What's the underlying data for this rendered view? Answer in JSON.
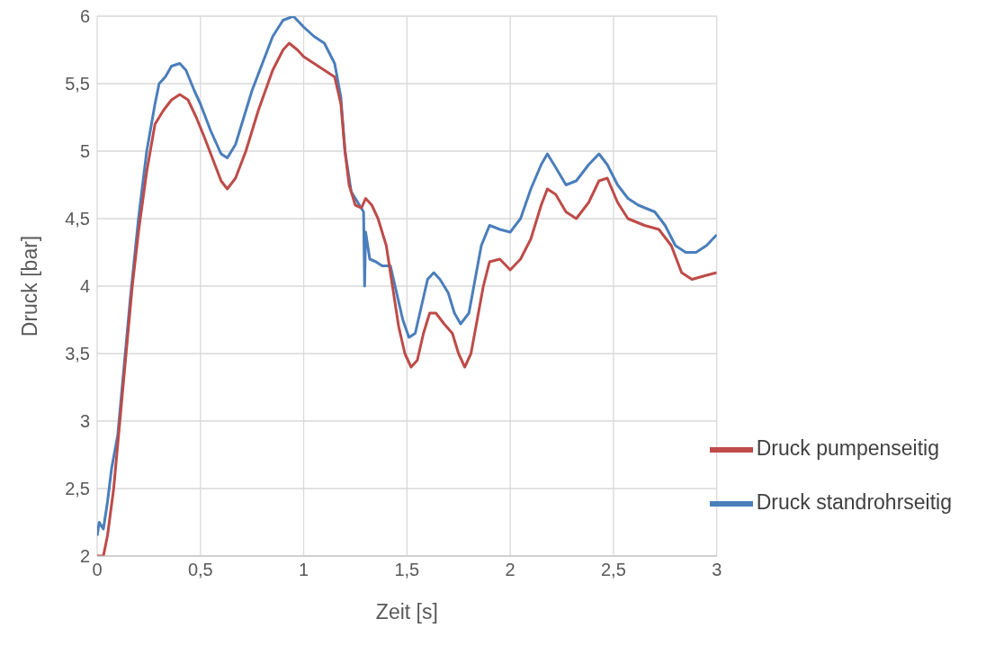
{
  "chart_data": {
    "type": "line",
    "xlabel": "Zeit [s]",
    "ylabel": "Druck [bar]",
    "xlim": [
      0,
      3
    ],
    "xticks": [
      0,
      {
        "value": 0.5,
        "label": "0,5"
      },
      1,
      {
        "value": 1.5,
        "label": "1,5"
      },
      2,
      {
        "value": 2.5,
        "label": "2,5"
      },
      3
    ],
    "ylim": [
      2,
      6
    ],
    "yticks": [
      2,
      {
        "value": 2.5,
        "label": "2,5"
      },
      3,
      {
        "value": 3.5,
        "label": "3,5"
      },
      4,
      {
        "value": 4.5,
        "label": "4,5"
      },
      5,
      {
        "value": 5.5,
        "label": "5,5"
      },
      6
    ],
    "grid": true,
    "legend": "bottom right",
    "marker": "none",
    "line_style": "solid",
    "series": [
      {
        "name": "Druck standrohrseitig",
        "color": "#4a7ebb",
        "x": [
          0,
          0.01,
          0.03,
          0.05,
          0.07,
          0.1,
          0.13,
          0.16,
          0.2,
          0.24,
          0.28,
          0.3,
          0.33,
          0.36,
          0.4,
          0.43,
          0.47,
          0.5,
          0.55,
          0.6,
          0.63,
          0.67,
          0.7,
          0.75,
          0.8,
          0.85,
          0.9,
          0.95,
          1,
          1.05,
          1.1,
          1.15,
          1.18,
          1.2,
          1.23,
          1.27,
          1.29,
          1.295,
          1.3,
          1.32,
          1.35,
          1.38,
          1.42,
          1.45,
          1.48,
          1.51,
          1.54,
          1.57,
          1.6,
          1.63,
          1.66,
          1.7,
          1.73,
          1.76,
          1.8,
          1.83,
          1.86,
          1.9,
          1.95,
          2,
          2.05,
          2.1,
          2.15,
          2.18,
          2.22,
          2.27,
          2.32,
          2.38,
          2.43,
          2.47,
          2.52,
          2.57,
          2.62,
          2.7,
          2.75,
          2.8,
          2.85,
          2.9,
          2.95,
          3
        ],
        "values": [
          2.15,
          2.25,
          2.2,
          2.4,
          2.65,
          2.9,
          3.4,
          3.9,
          4.5,
          5,
          5.35,
          5.5,
          5.55,
          5.63,
          5.65,
          5.6,
          5.45,
          5.35,
          5.15,
          4.98,
          4.95,
          5.05,
          5.2,
          5.45,
          5.65,
          5.85,
          5.97,
          6,
          5.92,
          5.85,
          5.8,
          5.65,
          5.4,
          5,
          4.7,
          4.6,
          4.55,
          4,
          4.4,
          4.2,
          4.18,
          4.15,
          4.15,
          3.95,
          3.75,
          3.62,
          3.65,
          3.85,
          4.05,
          4.1,
          4.05,
          3.95,
          3.8,
          3.72,
          3.8,
          4.05,
          4.3,
          4.45,
          4.42,
          4.4,
          4.5,
          4.72,
          4.9,
          4.98,
          4.88,
          4.75,
          4.78,
          4.9,
          4.98,
          4.9,
          4.75,
          4.65,
          4.6,
          4.55,
          4.45,
          4.3,
          4.25,
          4.25,
          4.3,
          4.38
        ]
      },
      {
        "name": "Druck pumpenseitig",
        "color": "#be4b48",
        "x": [
          0,
          0.03,
          0.05,
          0.08,
          0.11,
          0.14,
          0.17,
          0.2,
          0.24,
          0.28,
          0.32,
          0.36,
          0.4,
          0.44,
          0.48,
          0.52,
          0.57,
          0.6,
          0.63,
          0.67,
          0.72,
          0.78,
          0.85,
          0.9,
          0.93,
          0.97,
          1,
          1.05,
          1.1,
          1.15,
          1.18,
          1.2,
          1.22,
          1.25,
          1.28,
          1.3,
          1.33,
          1.36,
          1.4,
          1.43,
          1.46,
          1.49,
          1.52,
          1.55,
          1.58,
          1.61,
          1.64,
          1.68,
          1.72,
          1.75,
          1.78,
          1.81,
          1.84,
          1.87,
          1.9,
          1.95,
          2,
          2.05,
          2.1,
          2.15,
          2.18,
          2.22,
          2.27,
          2.32,
          2.38,
          2.43,
          2.47,
          2.52,
          2.57,
          2.65,
          2.72,
          2.78,
          2.83,
          2.88,
          2.95,
          3
        ],
        "values": [
          2,
          2,
          2.15,
          2.5,
          3,
          3.5,
          4,
          4.4,
          4.85,
          5.2,
          5.3,
          5.38,
          5.42,
          5.38,
          5.25,
          5.1,
          4.9,
          4.78,
          4.72,
          4.8,
          5,
          5.3,
          5.6,
          5.75,
          5.8,
          5.75,
          5.7,
          5.65,
          5.6,
          5.55,
          5.35,
          5,
          4.75,
          4.6,
          4.58,
          4.65,
          4.6,
          4.5,
          4.3,
          4,
          3.7,
          3.5,
          3.4,
          3.45,
          3.65,
          3.8,
          3.8,
          3.72,
          3.65,
          3.5,
          3.4,
          3.5,
          3.75,
          4,
          4.18,
          4.2,
          4.12,
          4.2,
          4.35,
          4.6,
          4.72,
          4.68,
          4.55,
          4.5,
          4.62,
          4.78,
          4.8,
          4.62,
          4.5,
          4.45,
          4.42,
          4.3,
          4.1,
          4.05,
          4.08,
          4.1
        ]
      }
    ]
  }
}
